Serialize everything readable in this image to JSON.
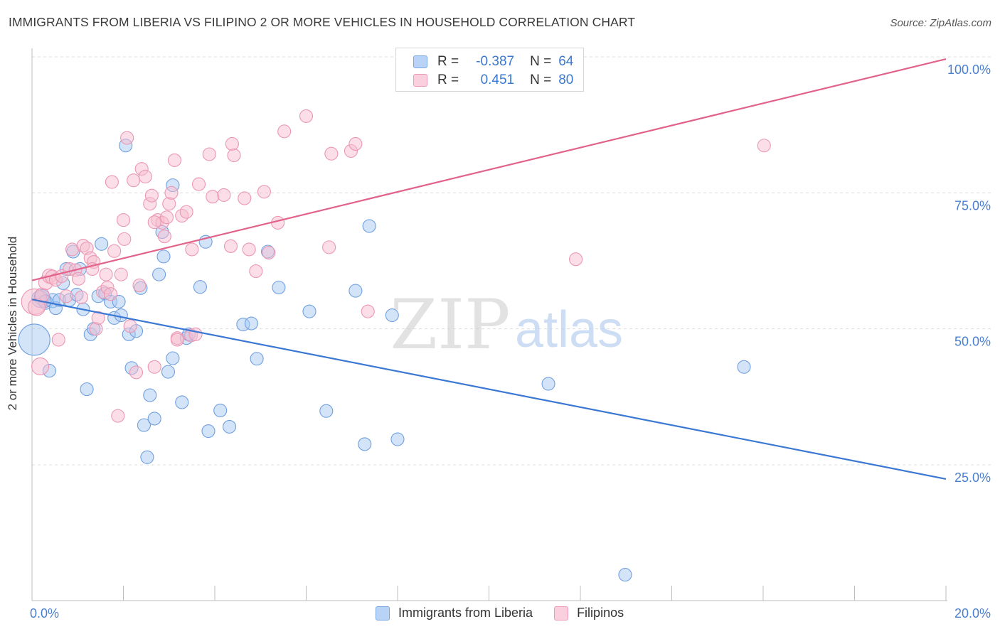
{
  "header": {
    "title": "IMMIGRANTS FROM LIBERIA VS FILIPINO 2 OR MORE VEHICLES IN HOUSEHOLD CORRELATION CHART",
    "source": "Source: ZipAtlas.com"
  },
  "watermark": {
    "zip": "ZIP",
    "atlas": "atlas"
  },
  "legend_top": {
    "rows": [
      {
        "r_label": "R =",
        "r_value": "-0.387",
        "n_label": "N =",
        "n_value": "64",
        "color": "#a8c8f0",
        "border": "#6f9fe0"
      },
      {
        "r_label": "R =",
        "r_value": "0.451",
        "n_label": "N =",
        "n_value": "80",
        "color": "#f8c0d2",
        "border": "#e88aaa"
      }
    ]
  },
  "legend_bottom": [
    {
      "label": "Immigrants from Liberia",
      "color": "#b8d3f5",
      "border": "#7aa6e3"
    },
    {
      "label": "Filipinos",
      "color": "#fad0de",
      "border": "#ee9ab6"
    }
  ],
  "colors": {
    "blue": "#3a78d4",
    "pink": "#e2628a",
    "blue_fill": "#a9c9f2",
    "pink_fill": "#f7bdd0",
    "axis_text": "#4a7fd0",
    "grid": "#dcdcdc"
  },
  "chart_data": {
    "type": "scatter",
    "title": "IMMIGRANTS FROM LIBERIA VS FILIPINO 2 OR MORE VEHICLES IN HOUSEHOLD CORRELATION CHART",
    "xlabel": "",
    "ylabel": "2 or more Vehicles in Household",
    "xlim": [
      0,
      20
    ],
    "ylim": [
      0,
      102
    ],
    "x_tick_labels": [
      "0.0%",
      "20.0%"
    ],
    "y_tick_labels": [
      "25.0%",
      "50.0%",
      "75.0%",
      "100.0%"
    ],
    "y_ticks": [
      25,
      50,
      75,
      100
    ],
    "grid": "horizontal dashed",
    "series": [
      {
        "name": "Immigrants from Liberia",
        "color": "#3a78d4",
        "trend": {
          "x": [
            0,
            20
          ],
          "y": [
            55.4,
            22.4
          ]
        },
        "points": [
          [
            0.05,
            48.0,
            22
          ],
          [
            0.18,
            55.5,
            12
          ],
          [
            0.22,
            55.8,
            11
          ],
          [
            0.3,
            54.9,
            10
          ],
          [
            0.38,
            42.3,
            9
          ],
          [
            0.45,
            55.2,
            10
          ],
          [
            0.52,
            53.8,
            9
          ],
          [
            0.6,
            55.3,
            9
          ],
          [
            0.68,
            58.4,
            9
          ],
          [
            0.75,
            61.0,
            9
          ],
          [
            0.82,
            55.3,
            9
          ],
          [
            0.9,
            64.2,
            9
          ],
          [
            0.98,
            56.3,
            9
          ],
          [
            1.05,
            61.0,
            9
          ],
          [
            1.12,
            53.6,
            9
          ],
          [
            1.2,
            38.9,
            9
          ],
          [
            1.28,
            49.0,
            9
          ],
          [
            1.35,
            50.0,
            9
          ],
          [
            1.45,
            56.0,
            9
          ],
          [
            1.52,
            65.6,
            9
          ],
          [
            1.6,
            56.5,
            9
          ],
          [
            1.72,
            55.0,
            9
          ],
          [
            1.8,
            52.0,
            9
          ],
          [
            1.9,
            55.0,
            9
          ],
          [
            1.95,
            52.5,
            9
          ],
          [
            2.05,
            83.7,
            9
          ],
          [
            2.12,
            49.0,
            9
          ],
          [
            2.18,
            42.8,
            9
          ],
          [
            2.28,
            49.6,
            9
          ],
          [
            2.38,
            57.5,
            9
          ],
          [
            2.45,
            32.3,
            9
          ],
          [
            2.52,
            26.4,
            9
          ],
          [
            2.58,
            37.8,
            9
          ],
          [
            2.68,
            33.5,
            9
          ],
          [
            2.78,
            60.0,
            9
          ],
          [
            2.85,
            67.8,
            9
          ],
          [
            2.88,
            63.3,
            9
          ],
          [
            2.98,
            42.1,
            9
          ],
          [
            3.08,
            44.6,
            9
          ],
          [
            3.08,
            76.4,
            9
          ],
          [
            3.28,
            36.5,
            9
          ],
          [
            3.38,
            48.3,
            9
          ],
          [
            3.43,
            49.0,
            9
          ],
          [
            3.68,
            57.7,
            9
          ],
          [
            3.8,
            66.0,
            9
          ],
          [
            3.86,
            31.2,
            9
          ],
          [
            4.12,
            35.0,
            9
          ],
          [
            4.32,
            32.0,
            9
          ],
          [
            4.62,
            50.8,
            9
          ],
          [
            4.8,
            51.0,
            9
          ],
          [
            4.92,
            44.5,
            9
          ],
          [
            5.16,
            64.2,
            9
          ],
          [
            5.4,
            57.6,
            9
          ],
          [
            6.07,
            53.2,
            9
          ],
          [
            6.44,
            34.9,
            9
          ],
          [
            7.08,
            57.0,
            9
          ],
          [
            7.28,
            28.8,
            9
          ],
          [
            7.38,
            68.9,
            9
          ],
          [
            7.88,
            52.5,
            9
          ],
          [
            8.0,
            29.7,
            9
          ],
          [
            11.3,
            39.9,
            9
          ],
          [
            12.98,
            4.8,
            9
          ],
          [
            15.58,
            43.0,
            9
          ],
          [
            0.28,
            55.1,
            9
          ]
        ]
      },
      {
        "name": "Filipinos",
        "color": "#e2628a",
        "trend": {
          "x": [
            0,
            20
          ],
          "y": [
            58.9,
            99.6
          ]
        },
        "points": [
          [
            0.05,
            55.0,
            18
          ],
          [
            0.1,
            54.0,
            12
          ],
          [
            0.18,
            43.1,
            12
          ],
          [
            0.22,
            56.2,
            10
          ],
          [
            0.3,
            58.5,
            10
          ],
          [
            0.38,
            59.7,
            10
          ],
          [
            0.45,
            59.5,
            10
          ],
          [
            0.52,
            59.0,
            9
          ],
          [
            0.58,
            48.0,
            9
          ],
          [
            0.65,
            59.7,
            9
          ],
          [
            0.75,
            56.0,
            9
          ],
          [
            0.82,
            61.0,
            9
          ],
          [
            0.88,
            64.6,
            9
          ],
          [
            0.95,
            60.8,
            9
          ],
          [
            1.02,
            59.2,
            9
          ],
          [
            1.08,
            55.8,
            9
          ],
          [
            1.12,
            65.3,
            9
          ],
          [
            1.2,
            64.8,
            9
          ],
          [
            1.28,
            63.0,
            9
          ],
          [
            1.35,
            62.3,
            9
          ],
          [
            1.4,
            50.0,
            9
          ],
          [
            1.45,
            52.0,
            9
          ],
          [
            1.55,
            56.8,
            9
          ],
          [
            1.62,
            60.0,
            9
          ],
          [
            1.65,
            57.6,
            9
          ],
          [
            1.72,
            56.4,
            9
          ],
          [
            1.75,
            77.0,
            9
          ],
          [
            1.8,
            64.3,
            9
          ],
          [
            1.88,
            34.0,
            9
          ],
          [
            1.95,
            60.0,
            9
          ],
          [
            2.0,
            70.0,
            9
          ],
          [
            2.02,
            66.5,
            9
          ],
          [
            2.08,
            85.1,
            9
          ],
          [
            2.15,
            50.5,
            9
          ],
          [
            2.22,
            77.3,
            9
          ],
          [
            2.28,
            42.0,
            9
          ],
          [
            2.35,
            58.0,
            9
          ],
          [
            2.4,
            79.4,
            9
          ],
          [
            2.48,
            78.0,
            9
          ],
          [
            2.58,
            73.0,
            9
          ],
          [
            2.62,
            74.5,
            9
          ],
          [
            2.68,
            43.0,
            9
          ],
          [
            2.75,
            70.0,
            9
          ],
          [
            2.85,
            69.5,
            9
          ],
          [
            2.9,
            67.0,
            9
          ],
          [
            2.95,
            70.5,
            9
          ],
          [
            3.0,
            73.0,
            9
          ],
          [
            3.05,
            75.0,
            9
          ],
          [
            3.12,
            81.0,
            9
          ],
          [
            3.18,
            48.3,
            9
          ],
          [
            3.28,
            70.8,
            9
          ],
          [
            3.38,
            71.5,
            9
          ],
          [
            3.48,
            48.8,
            9
          ],
          [
            3.5,
            64.6,
            9
          ],
          [
            3.58,
            49.0,
            9
          ],
          [
            3.65,
            76.6,
            9
          ],
          [
            3.88,
            82.1,
            9
          ],
          [
            3.95,
            74.3,
            9
          ],
          [
            4.2,
            74.6,
            9
          ],
          [
            4.35,
            65.2,
            9
          ],
          [
            4.38,
            84.0,
            9
          ],
          [
            4.42,
            81.9,
            9
          ],
          [
            4.65,
            74.0,
            9
          ],
          [
            4.75,
            64.6,
            9
          ],
          [
            4.9,
            60.6,
            9
          ],
          [
            5.08,
            75.2,
            9
          ],
          [
            5.18,
            64.0,
            9
          ],
          [
            5.38,
            69.5,
            9
          ],
          [
            5.52,
            86.3,
            9
          ],
          [
            6.0,
            89.1,
            9
          ],
          [
            6.5,
            65.0,
            9
          ],
          [
            6.55,
            82.2,
            9
          ],
          [
            6.98,
            82.7,
            9
          ],
          [
            7.08,
            84.0,
            9
          ],
          [
            7.35,
            53.2,
            9
          ],
          [
            11.9,
            62.8,
            9
          ],
          [
            16.02,
            83.7,
            9
          ],
          [
            3.18,
            48.0,
            9
          ],
          [
            2.68,
            69.6,
            9
          ],
          [
            1.32,
            61.0,
            9
          ]
        ]
      }
    ]
  }
}
